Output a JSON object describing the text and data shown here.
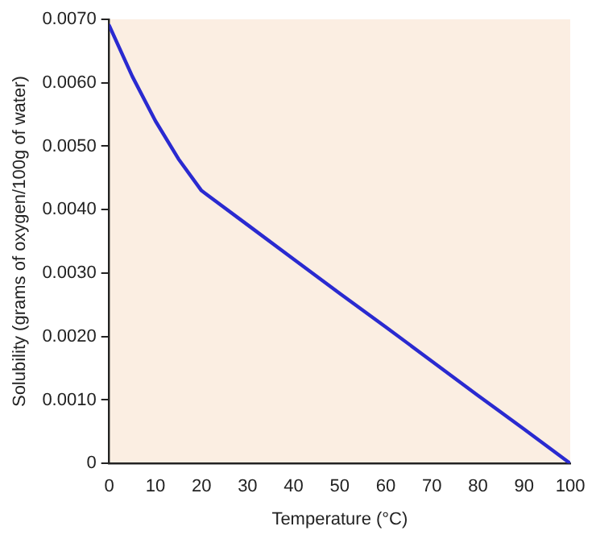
{
  "chart_data": {
    "type": "line",
    "xlabel": "Temperature (°C)",
    "ylabel": "Solubility (grams of oxygen/100g of water)",
    "x": [
      0,
      5,
      10,
      15,
      20,
      30,
      40,
      50,
      60,
      70,
      80,
      90,
      100
    ],
    "series": [
      {
        "color": "#2a2ad0",
        "values": [
          0.0069,
          0.0061,
          0.0054,
          0.0048,
          0.0043,
          0.00376,
          0.00322,
          0.00268,
          0.00215,
          0.00161,
          0.00107,
          0.00054,
          0
        ]
      }
    ],
    "xlim": [
      0,
      100
    ],
    "xticks": [
      0,
      10,
      20,
      30,
      40,
      50,
      60,
      70,
      80,
      90,
      100
    ],
    "ylim": [
      0,
      0.007
    ],
    "yticks": [
      0,
      {
        "value": 0.001,
        "label": "0.0010"
      },
      {
        "value": 0.002,
        "label": "0.0020"
      },
      {
        "value": 0.003,
        "label": "0.0030"
      },
      {
        "value": 0.004,
        "label": "0.0040"
      },
      {
        "value": 0.005,
        "label": "0.0050"
      },
      {
        "value": 0.006,
        "label": "0.0060"
      },
      {
        "value": 0.007,
        "label": "0.0070"
      }
    ],
    "grid": false,
    "legend": false,
    "marker": "none",
    "line_style": "solid"
  }
}
